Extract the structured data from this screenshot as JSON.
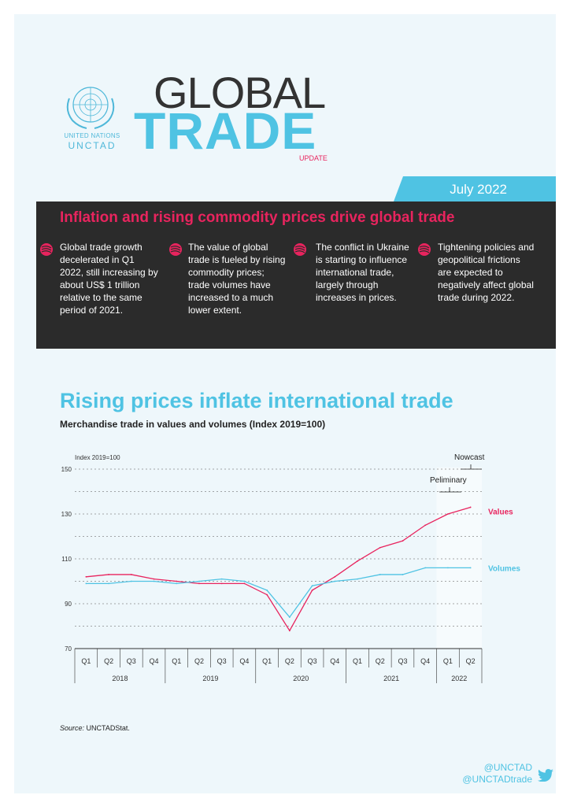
{
  "header": {
    "org_line1": "UNITED NATIONS",
    "org_line2": "UNCTAD",
    "title_word1": "GLOBAL",
    "title_word2": "TRADE",
    "title_word3": "UPDATE",
    "date": "July 2022"
  },
  "highlights": {
    "title": "Inflation and rising commodity prices drive global trade",
    "bullets": [
      "Global trade growth decelerated in Q1 2022, still increasing by about US$ 1 trillion relative to the same period of 2021.",
      "The value of global trade is fueled by rising commodity prices; trade volumes have increased to a much lower extent.",
      "The conflict in Ukraine is starting to influence international trade, largely through increases in prices.",
      "Tightening policies and geopolitical frictions are expected to negatively affect global trade during 2022."
    ]
  },
  "section": {
    "title": "Rising prices inflate international trade",
    "subtitle": "Merchandise trade in values and volumes (Index 2019=100)"
  },
  "chart_data": {
    "type": "line",
    "ylabel": "Index 2019=100",
    "ylim": [
      70,
      150
    ],
    "yticks": [
      70,
      90,
      110,
      130,
      150
    ],
    "grid": true,
    "x": [
      "Q1",
      "Q2",
      "Q3",
      "Q4",
      "Q1",
      "Q2",
      "Q3",
      "Q4",
      "Q1",
      "Q2",
      "Q3",
      "Q4",
      "Q1",
      "Q2",
      "Q3",
      "Q4",
      "Q1",
      "Q2"
    ],
    "years": [
      "2018",
      "2019",
      "2020",
      "2021",
      "2022"
    ],
    "series": [
      {
        "name": "Values",
        "color": "#e8245e",
        "values": [
          102,
          103,
          103,
          101,
          100,
          99,
          99,
          99,
          94,
          78,
          96,
          102,
          109,
          115,
          118,
          125,
          130,
          133
        ]
      },
      {
        "name": "Volumes",
        "color": "#4fc3e3",
        "values": [
          99,
          99,
          100,
          100,
          99,
          100,
          101,
          100,
          96,
          84,
          98,
          100,
          101,
          103,
          103,
          106,
          106,
          106
        ]
      }
    ],
    "annotations": [
      "Nowcast",
      "Peliminary"
    ]
  },
  "source": {
    "label": "Source:",
    "text": "UNCTADStat."
  },
  "footer": {
    "handle1": "@UNCTAD",
    "handle2": "@UNCTADtrade"
  }
}
